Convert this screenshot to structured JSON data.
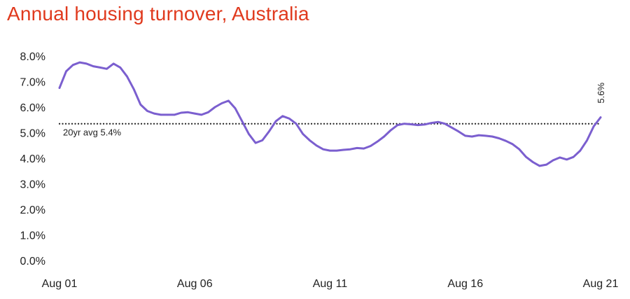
{
  "chart_data": {
    "type": "line",
    "title": "Annual housing turnover, Australia",
    "colors": {
      "title": "#e03a1e",
      "series": "#7b5fcf",
      "reference": "#222222"
    },
    "xlim": [
      2001.583,
      2021.583
    ],
    "ylim": [
      0,
      8
    ],
    "y_ticks": [
      {
        "value": 0,
        "label": "0.0%"
      },
      {
        "value": 1,
        "label": "1.0%"
      },
      {
        "value": 2,
        "label": "2.0%"
      },
      {
        "value": 3,
        "label": "3.0%"
      },
      {
        "value": 4,
        "label": "4.0%"
      },
      {
        "value": 5,
        "label": "5.0%"
      },
      {
        "value": 6,
        "label": "6.0%"
      },
      {
        "value": 7,
        "label": "7.0%"
      },
      {
        "value": 8,
        "label": "8.0%"
      }
    ],
    "x_ticks": [
      {
        "value": 2001.583,
        "label": "Aug 01"
      },
      {
        "value": 2006.583,
        "label": "Aug 06"
      },
      {
        "value": 2011.583,
        "label": "Aug 11"
      },
      {
        "value": 2016.583,
        "label": "Aug 16"
      },
      {
        "value": 2021.583,
        "label": "Aug 21"
      }
    ],
    "grid": false,
    "reference_line": {
      "value": 5.35,
      "label": "20yr avg 5.4%",
      "style": "dotted"
    },
    "end_label": "5.6%",
    "series": [
      {
        "x": [
          2001.583,
          2001.83,
          2002.08,
          2002.33,
          2002.58,
          2002.83,
          2003.08,
          2003.33,
          2003.58,
          2003.83,
          2004.08,
          2004.33,
          2004.58,
          2004.83,
          2005.08,
          2005.33,
          2005.58,
          2005.83,
          2006.08,
          2006.33,
          2006.58,
          2006.83,
          2007.08,
          2007.33,
          2007.58,
          2007.83,
          2008.08,
          2008.33,
          2008.58,
          2008.83,
          2009.08,
          2009.33,
          2009.58,
          2009.83,
          2010.08,
          2010.33,
          2010.58,
          2010.83,
          2011.08,
          2011.33,
          2011.58,
          2011.83,
          2012.08,
          2012.33,
          2012.58,
          2012.83,
          2013.08,
          2013.33,
          2013.58,
          2013.83,
          2014.08,
          2014.33,
          2014.58,
          2014.83,
          2015.08,
          2015.33,
          2015.58,
          2015.83,
          2016.08,
          2016.33,
          2016.58,
          2016.83,
          2017.08,
          2017.33,
          2017.58,
          2017.83,
          2018.08,
          2018.33,
          2018.58,
          2018.83,
          2019.08,
          2019.33,
          2019.58,
          2019.83,
          2020.08,
          2020.33,
          2020.58,
          2020.83,
          2021.08,
          2021.33,
          2021.583
        ],
        "values": [
          6.75,
          7.4,
          7.65,
          7.75,
          7.7,
          7.6,
          7.55,
          7.5,
          7.7,
          7.55,
          7.2,
          6.7,
          6.1,
          5.85,
          5.75,
          5.7,
          5.7,
          5.7,
          5.78,
          5.8,
          5.75,
          5.7,
          5.8,
          6.0,
          6.15,
          6.25,
          5.95,
          5.45,
          4.95,
          4.6,
          4.7,
          5.05,
          5.45,
          5.65,
          5.55,
          5.35,
          4.95,
          4.7,
          4.5,
          4.35,
          4.3,
          4.3,
          4.33,
          4.35,
          4.4,
          4.38,
          4.48,
          4.65,
          4.85,
          5.1,
          5.3,
          5.35,
          5.33,
          5.3,
          5.32,
          5.38,
          5.42,
          5.35,
          5.2,
          5.05,
          4.88,
          4.85,
          4.9,
          4.88,
          4.85,
          4.78,
          4.68,
          4.55,
          4.35,
          4.05,
          3.85,
          3.7,
          3.75,
          3.92,
          4.03,
          3.95,
          4.05,
          4.3,
          4.7,
          5.25,
          5.6
        ]
      }
    ]
  }
}
